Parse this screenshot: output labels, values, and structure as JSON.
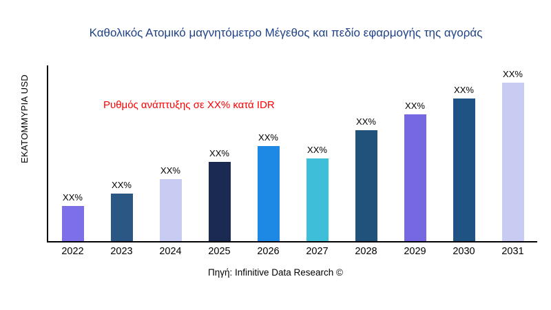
{
  "chart_data": {
    "type": "bar",
    "title": "Καθολικός Ατομικό μαγνητόμετρο Μέγεθος και πεδίο εφαρμογής της αγοράς",
    "title_color": "#1f4187",
    "ylabel": "ΕΚΑΤΟΜΜΥΡΙΑ USD",
    "xlabel": "",
    "annotation": "Ρυθμός ανάπτυξης σε XX% κατά IDR",
    "annotation_color": "#ff0000",
    "source": "Πηγή: Infinitive Data Research ©",
    "categories": [
      "2022",
      "2023",
      "2024",
      "2025",
      "2026",
      "2027",
      "2028",
      "2029",
      "2030",
      "2031"
    ],
    "values": [
      22,
      30,
      39,
      50,
      60,
      52,
      70,
      80,
      90,
      100
    ],
    "value_unit": "relative height, % of tallest bar (actual values masked as XX%)",
    "bar_labels": [
      "XX%",
      "XX%",
      "XX%",
      "XX%",
      "XX%",
      "XX%",
      "XX%",
      "XX%",
      "XX%",
      "XX%"
    ],
    "colors": [
      "#7c6fe8",
      "#2a5783",
      "#c9ccf2",
      "#1b2a52",
      "#1e88e5",
      "#3fbeda",
      "#21527b",
      "#7668e0",
      "#1f5384",
      "#c9ccf2"
    ],
    "ylim": [
      0,
      100
    ],
    "grid": false,
    "legend": false,
    "axis_color": "#000000"
  }
}
